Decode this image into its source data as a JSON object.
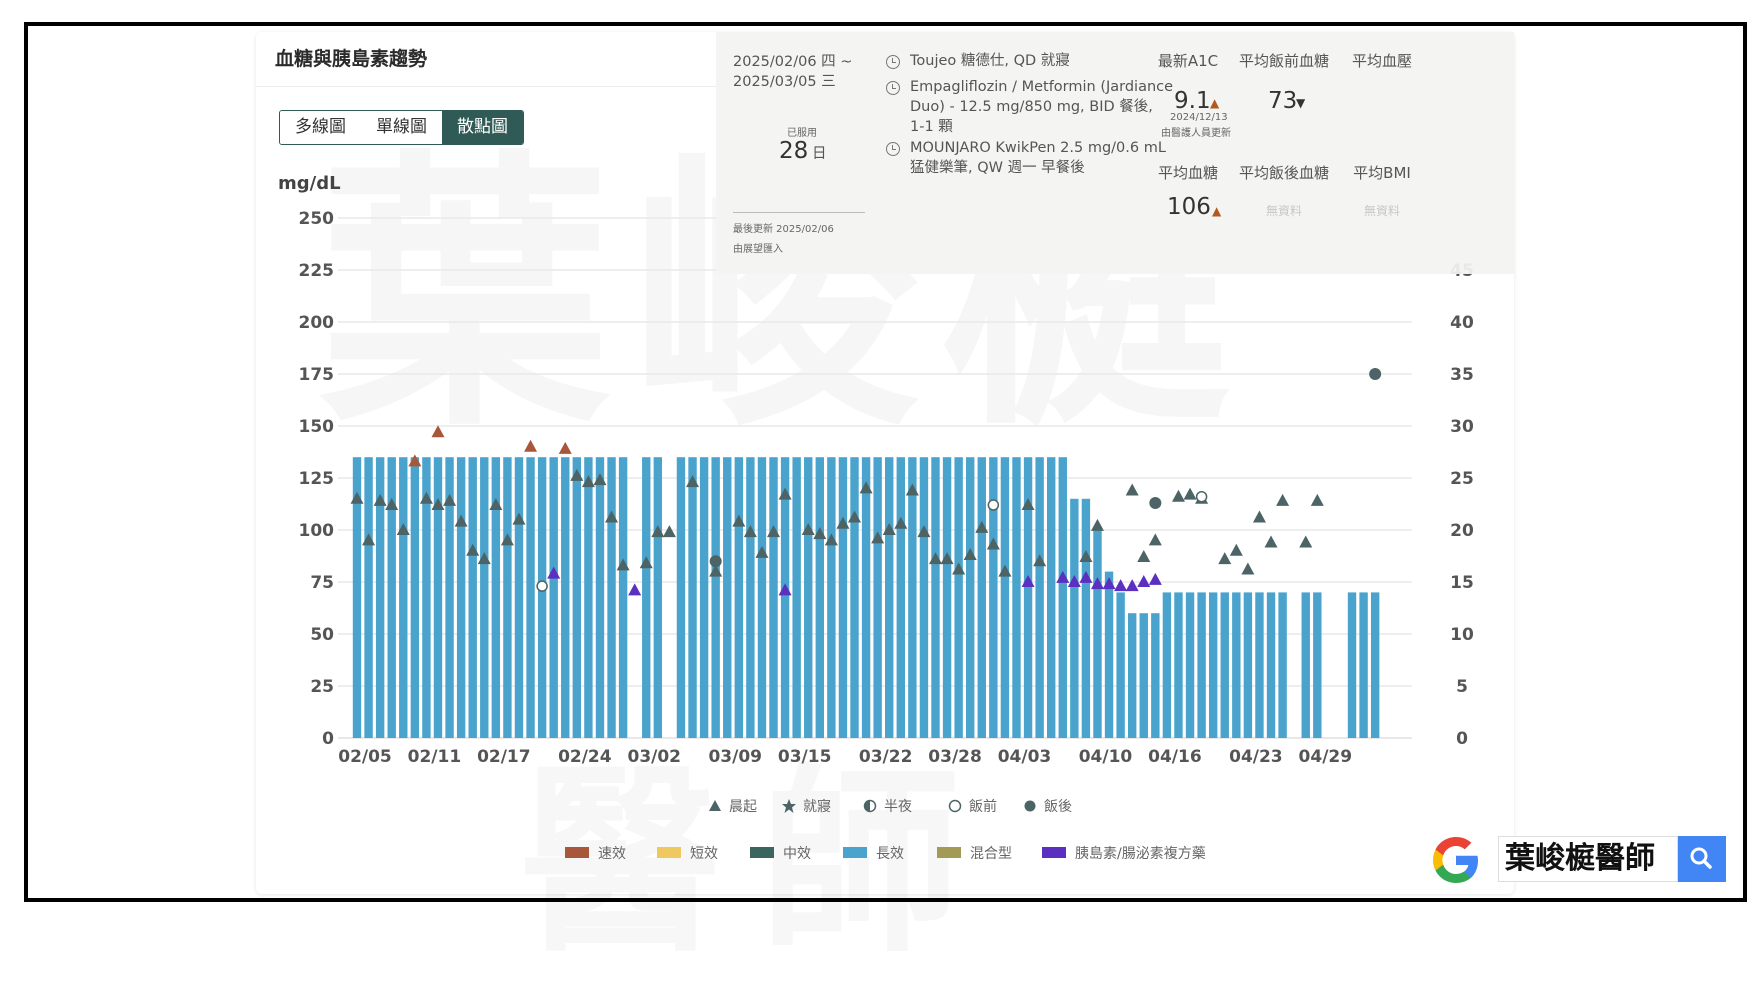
{
  "card": {
    "title": "血糖與胰島素趨勢",
    "tabs": [
      {
        "label": "多線圖",
        "active": false
      },
      {
        "label": "單線圖",
        "active": false
      },
      {
        "label": "散點圖",
        "active": true
      }
    ]
  },
  "summary": {
    "date_range_line1": "2025/02/06 四 ~",
    "date_range_line2": "2025/03/05 三",
    "used_label": "已服用",
    "used_days": "28",
    "used_unit": "日",
    "last_update": "最後更新 2025/02/06",
    "entered_by": "由展望匯入",
    "medications": [
      {
        "lines": [
          "Toujeo 糖德仕, QD 就寢"
        ]
      },
      {
        "lines": [
          "Empagliflozin / Metformin (Jardiance",
          "Duo) - 12.5 mg/850 mg, BID 餐後,",
          "1-1 顆"
        ]
      },
      {
        "lines": [
          "MOUNJARO KwikPen 2.5 mg/0.6 mL",
          "猛健樂筆, QW 週一 早餐後"
        ]
      }
    ],
    "stats": {
      "a1c_label": "最新A1C",
      "a1c_value": "9.1",
      "a1c_trend": "up",
      "a1c_date": "2024/12/13",
      "a1c_source": "由醫護人員更新",
      "premeal_label": "平均飯前血糖",
      "premeal_value": "73",
      "premeal_trend": "down",
      "bp_label": "平均血壓",
      "avg_glucose_label": "平均血糖",
      "avg_glucose_value": "106",
      "avg_glucose_trend": "up",
      "postmeal_label": "平均飯後血糖",
      "postmeal_value": "無資料",
      "bmi_label": "平均BMI",
      "bmi_value": "無資料"
    }
  },
  "legend_glucose": [
    {
      "label": "晨起",
      "marker": "triangle",
      "color": "#4d6466"
    },
    {
      "label": "就寢",
      "marker": "star",
      "color": "#4d6466"
    },
    {
      "label": "半夜",
      "marker": "half-circle",
      "color": "#4d6466"
    },
    {
      "label": "飯前",
      "marker": "hollow-circle",
      "color": "#4d6466"
    },
    {
      "label": "飯後",
      "marker": "circle",
      "color": "#4d6466"
    }
  ],
  "legend_insulin": [
    {
      "label": "速效",
      "color": "#a9573a"
    },
    {
      "label": "短效",
      "color": "#f0c860"
    },
    {
      "label": "中效",
      "color": "#3d6560"
    },
    {
      "label": "長效",
      "color": "#4aa3cc"
    },
    {
      "label": "混合型",
      "color": "#a39a55"
    },
    {
      "label": "胰島素/腸泌素複方藥",
      "color": "#5b2fc0"
    }
  ],
  "chart_data": {
    "type": "bar+scatter",
    "ylabel": "mg/dL",
    "y_left_range": [
      0,
      250
    ],
    "y_left_ticks": [
      0,
      25,
      50,
      75,
      100,
      125,
      150,
      175,
      200,
      225,
      250
    ],
    "y_right_range": [
      0,
      50
    ],
    "y_right_ticks": [
      0,
      5,
      10,
      15,
      20,
      25,
      30,
      35,
      40
    ],
    "x_tick_labels": [
      "02/05",
      "02/11",
      "02/17",
      "02/24",
      "03/02",
      "03/09",
      "03/15",
      "03/22",
      "03/28",
      "04/03",
      "04/10",
      "04/16",
      "04/23",
      "04/29"
    ],
    "x_tick_day_index": [
      0,
      6,
      12,
      19,
      25,
      32,
      38,
      45,
      51,
      57,
      64,
      70,
      77,
      83
    ],
    "grid": true,
    "insulin_long_acting_units_by_day": [
      27,
      27,
      27,
      27,
      27,
      27,
      27,
      27,
      27,
      27,
      27,
      27,
      27,
      27,
      27,
      27,
      27,
      27,
      27,
      27,
      27,
      27,
      27,
      27,
      null,
      27,
      27,
      null,
      27,
      27,
      27,
      27,
      27,
      27,
      27,
      27,
      27,
      27,
      27,
      27,
      27,
      27,
      27,
      27,
      27,
      27,
      27,
      27,
      27,
      27,
      27,
      27,
      27,
      27,
      27,
      27,
      27,
      27,
      27,
      27,
      27,
      27,
      23,
      23,
      20,
      16,
      14,
      12,
      12,
      12,
      14,
      14,
      14,
      14,
      14,
      14,
      14,
      14,
      14,
      14,
      14,
      null,
      14,
      14,
      null,
      null,
      14,
      14,
      14
    ],
    "glucose_wakeup": [
      [
        0,
        115
      ],
      [
        1,
        95
      ],
      [
        2,
        114
      ],
      [
        3,
        112
      ],
      [
        4,
        100
      ],
      [
        6,
        115
      ],
      [
        7,
        112
      ],
      [
        8,
        114
      ],
      [
        9,
        104
      ],
      [
        10,
        90
      ],
      [
        11,
        86
      ],
      [
        12,
        112
      ],
      [
        13,
        95
      ],
      [
        14,
        105
      ],
      [
        19,
        126
      ],
      [
        20,
        123
      ],
      [
        21,
        124
      ],
      [
        22,
        106
      ],
      [
        23,
        83
      ],
      [
        25,
        84
      ],
      [
        26,
        99
      ],
      [
        27,
        99
      ],
      [
        29,
        123
      ],
      [
        31,
        80
      ],
      [
        33,
        104
      ],
      [
        34,
        99
      ],
      [
        35,
        89
      ],
      [
        36,
        99
      ],
      [
        37,
        117
      ],
      [
        39,
        100
      ],
      [
        40,
        98
      ],
      [
        41,
        95
      ],
      [
        42,
        103
      ],
      [
        43,
        106
      ],
      [
        44,
        120
      ],
      [
        45,
        96
      ],
      [
        46,
        100
      ],
      [
        47,
        103
      ],
      [
        48,
        119
      ],
      [
        49,
        99
      ],
      [
        50,
        86
      ],
      [
        51,
        86
      ],
      [
        52,
        81
      ],
      [
        53,
        88
      ],
      [
        54,
        101
      ],
      [
        55,
        93
      ],
      [
        56,
        80
      ],
      [
        58,
        112
      ],
      [
        59,
        85
      ],
      [
        63,
        87
      ],
      [
        64,
        102
      ],
      [
        67,
        119
      ],
      [
        68,
        87
      ],
      [
        69,
        95
      ],
      [
        71,
        116
      ],
      [
        72,
        117
      ],
      [
        73,
        115
      ],
      [
        75,
        86
      ],
      [
        76,
        90
      ],
      [
        77,
        81
      ],
      [
        78,
        106
      ],
      [
        79,
        94
      ],
      [
        80,
        114
      ],
      [
        82,
        94
      ],
      [
        83,
        114
      ]
    ],
    "glucose_premeal": [
      [
        16,
        73
      ],
      [
        55,
        112
      ],
      [
        73,
        116
      ]
    ],
    "glucose_postmeal": [
      [
        31,
        85
      ],
      [
        69,
        113
      ],
      [
        88,
        175
      ]
    ],
    "glucose_wakeup_rapid_insulin": [
      [
        5,
        133
      ],
      [
        7,
        147
      ],
      [
        15,
        140
      ],
      [
        18,
        139
      ]
    ],
    "glucose_compound_insulin_flag": [
      [
        17,
        79
      ],
      [
        24,
        71
      ],
      [
        37,
        71
      ],
      [
        58,
        75
      ],
      [
        61,
        77
      ],
      [
        62,
        75
      ],
      [
        63,
        77
      ],
      [
        64,
        74
      ],
      [
        65,
        74
      ],
      [
        66,
        73
      ],
      [
        67,
        73
      ],
      [
        68,
        75
      ],
      [
        69,
        76
      ]
    ]
  },
  "overlay_extra": {
    "right_axis_partial_tick": "45"
  },
  "watermark": {
    "text": "葉峻榳",
    "text2": "醫師"
  },
  "search_widget": {
    "query": "葉峻榳醫師",
    "logo": "google-logo",
    "button_icon": "search-icon"
  }
}
